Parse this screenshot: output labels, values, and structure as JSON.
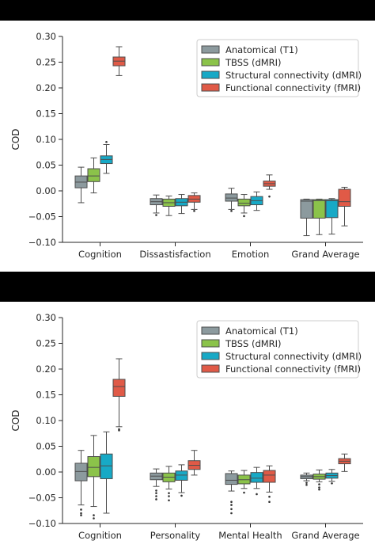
{
  "chart_data": [
    {
      "type": "box",
      "ylabel": "COD",
      "ylim": [
        -0.1,
        0.3
      ],
      "yticks": [
        "−0.10",
        "−0.05",
        "0.00",
        "0.05",
        "0.10",
        "0.15",
        "0.20",
        "0.25",
        "0.30"
      ],
      "categories": [
        "Cognition",
        "Dissastisfaction",
        "Emotion",
        "Grand Average"
      ],
      "legend_position": "top-right",
      "series": [
        {
          "name": "Anatomical (T1)",
          "color": "#8c9a9e",
          "boxes": [
            {
              "whislo": -0.023,
              "q1": 0.006,
              "med": 0.017,
              "q3": 0.029,
              "whishi": 0.046,
              "fliers": []
            },
            {
              "whislo": -0.043,
              "q1": -0.027,
              "med": -0.021,
              "q3": -0.015,
              "whishi": -0.008,
              "fliers": [
                -0.047
              ]
            },
            {
              "whislo": -0.036,
              "q1": -0.02,
              "med": -0.014,
              "q3": -0.006,
              "whishi": 0.005,
              "fliers": [
                -0.039
              ]
            },
            {
              "whislo": -0.087,
              "q1": -0.053,
              "med": -0.02,
              "q3": -0.017,
              "whishi": -0.016,
              "fliers": []
            }
          ]
        },
        {
          "name": "TBSS (dMRI)",
          "color": "#8bc34a",
          "boxes": [
            {
              "whislo": -0.004,
              "q1": 0.018,
              "med": 0.029,
              "q3": 0.043,
              "whishi": 0.064,
              "fliers": []
            },
            {
              "whislo": -0.048,
              "q1": -0.03,
              "med": -0.023,
              "q3": -0.016,
              "whishi": -0.01,
              "fliers": []
            },
            {
              "whislo": -0.043,
              "q1": -0.029,
              "med": -0.024,
              "q3": -0.016,
              "whishi": -0.007,
              "fliers": [
                -0.049
              ]
            },
            {
              "whislo": -0.085,
              "q1": -0.053,
              "med": -0.019,
              "q3": -0.017,
              "whishi": -0.016,
              "fliers": []
            }
          ]
        },
        {
          "name": "Structural connectivity (dMRI)",
          "color": "#17a9c6",
          "boxes": [
            {
              "whislo": 0.034,
              "q1": 0.053,
              "med": 0.061,
              "q3": 0.068,
              "whishi": 0.09,
              "fliers": [
                0.095
              ]
            },
            {
              "whislo": -0.044,
              "q1": -0.029,
              "med": -0.022,
              "q3": -0.015,
              "whishi": -0.007,
              "fliers": []
            },
            {
              "whislo": -0.038,
              "q1": -0.027,
              "med": -0.019,
              "q3": -0.011,
              "whishi": -0.002,
              "fliers": []
            },
            {
              "whislo": -0.084,
              "q1": -0.052,
              "med": -0.019,
              "q3": -0.017,
              "whishi": -0.015,
              "fliers": []
            }
          ]
        },
        {
          "name": "Functional connectivity (fMRI)",
          "color": "#e05a47",
          "boxes": [
            {
              "whislo": 0.224,
              "q1": 0.243,
              "med": 0.252,
              "q3": 0.26,
              "whishi": 0.28,
              "fliers": []
            },
            {
              "whislo": -0.036,
              "q1": -0.022,
              "med": -0.016,
              "q3": -0.009,
              "whishi": -0.004,
              "fliers": [
                -0.039
              ]
            },
            {
              "whislo": 0.003,
              "q1": 0.009,
              "med": 0.014,
              "q3": 0.019,
              "whishi": 0.031,
              "fliers": [
                -0.011
              ]
            },
            {
              "whislo": -0.068,
              "q1": -0.03,
              "med": -0.021,
              "q3": 0.003,
              "whishi": 0.007,
              "fliers": []
            }
          ]
        }
      ]
    },
    {
      "type": "box",
      "ylabel": "COD",
      "ylim": [
        -0.1,
        0.3
      ],
      "yticks": [
        "−0.10",
        "−0.05",
        "0.00",
        "0.05",
        "0.10",
        "0.15",
        "0.20",
        "0.25",
        "0.30"
      ],
      "categories": [
        "Cognition",
        "Personality",
        "Mental Health",
        "Grand Average"
      ],
      "legend_position": "top-right",
      "series": [
        {
          "name": "Anatomical (T1)",
          "color": "#8c9a9e",
          "boxes": [
            {
              "whislo": -0.064,
              "q1": -0.017,
              "med": 0.001,
              "q3": 0.017,
              "whishi": 0.042,
              "fliers": [
                -0.073,
                -0.08,
                -0.084
              ]
            },
            {
              "whislo": -0.028,
              "q1": -0.015,
              "med": -0.008,
              "q3": -0.002,
              "whishi": 0.006,
              "fliers": [
                -0.036,
                -0.041,
                -0.047,
                -0.053
              ]
            },
            {
              "whislo": -0.037,
              "q1": -0.024,
              "med": -0.016,
              "q3": -0.003,
              "whishi": 0.002,
              "fliers": [
                -0.058,
                -0.064,
                -0.072,
                -0.08
              ]
            },
            {
              "whislo": -0.017,
              "q1": -0.013,
              "med": -0.009,
              "q3": -0.006,
              "whishi": -0.002,
              "fliers": [
                -0.021,
                -0.025
              ]
            }
          ]
        },
        {
          "name": "TBSS (dMRI)",
          "color": "#8bc34a",
          "boxes": [
            {
              "whislo": -0.067,
              "q1": -0.009,
              "med": 0.009,
              "q3": 0.03,
              "whishi": 0.071,
              "fliers": [
                -0.084,
                -0.09
              ]
            },
            {
              "whislo": -0.033,
              "q1": -0.019,
              "med": -0.01,
              "q3": -0.002,
              "whishi": 0.011,
              "fliers": [
                -0.041,
                -0.047,
                -0.055
              ]
            },
            {
              "whislo": -0.032,
              "q1": -0.023,
              "med": -0.015,
              "q3": -0.006,
              "whishi": 0.003,
              "fliers": [
                -0.04
              ]
            },
            {
              "whislo": -0.019,
              "q1": -0.014,
              "med": -0.009,
              "q3": -0.004,
              "whishi": 0.004,
              "fliers": [
                -0.024,
                -0.03,
                -0.034
              ]
            }
          ]
        },
        {
          "name": "Structural connectivity (dMRI)",
          "color": "#17a9c6",
          "boxes": [
            {
              "whislo": -0.08,
              "q1": -0.013,
              "med": 0.012,
              "q3": 0.035,
              "whishi": 0.078,
              "fliers": []
            },
            {
              "whislo": -0.04,
              "q1": -0.016,
              "med": -0.006,
              "q3": 0.002,
              "whishi": 0.014,
              "fliers": [
                -0.046
              ]
            },
            {
              "whislo": -0.032,
              "q1": -0.02,
              "med": -0.012,
              "q3": -0.001,
              "whishi": 0.009,
              "fliers": [
                -0.043
              ]
            },
            {
              "whislo": -0.018,
              "q1": -0.012,
              "med": -0.007,
              "q3": -0.002,
              "whishi": 0.005,
              "fliers": [
                -0.022
              ]
            }
          ]
        },
        {
          "name": "Functional connectivity (fMRI)",
          "color": "#e05a47",
          "boxes": [
            {
              "whislo": 0.088,
              "q1": 0.147,
              "med": 0.166,
              "q3": 0.18,
              "whishi": 0.22,
              "fliers": [
                0.083,
                0.081
              ]
            },
            {
              "whislo": -0.006,
              "q1": 0.005,
              "med": 0.013,
              "q3": 0.022,
              "whishi": 0.042,
              "fliers": []
            },
            {
              "whislo": -0.039,
              "q1": -0.02,
              "med": -0.006,
              "q3": 0.003,
              "whishi": 0.012,
              "fliers": [
                -0.048,
                -0.058
              ]
            },
            {
              "whislo": 0.001,
              "q1": 0.016,
              "med": 0.021,
              "q3": 0.026,
              "whishi": 0.035,
              "fliers": []
            }
          ]
        }
      ]
    }
  ]
}
